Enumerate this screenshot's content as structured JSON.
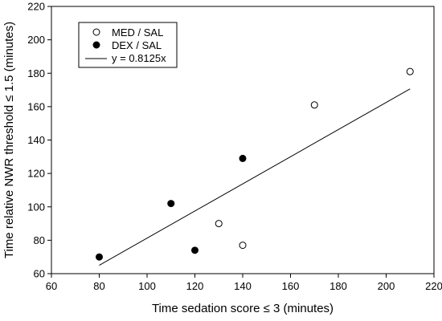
{
  "chart_data": {
    "type": "scatter",
    "xlabel": "Time sedation score ≤ 3 (minutes)",
    "ylabel": "Time relative NWR threshold ≤ 1.5 (minutes)",
    "xlim": [
      60,
      220
    ],
    "ylim": [
      60,
      220
    ],
    "xticks": [
      60,
      80,
      100,
      120,
      140,
      160,
      180,
      200,
      220
    ],
    "yticks": [
      60,
      80,
      100,
      120,
      140,
      160,
      180,
      200,
      220
    ],
    "grid": false,
    "legend_position": "top-left",
    "series": [
      {
        "name": "MED / SAL",
        "marker": "open-circle",
        "color": "#000000",
        "points": [
          [
            130,
            90
          ],
          [
            140,
            77
          ],
          [
            170,
            161
          ],
          [
            210,
            181
          ]
        ]
      },
      {
        "name": "DEX / SAL",
        "marker": "filled-circle",
        "color": "#000000",
        "points": [
          [
            80,
            70
          ],
          [
            110,
            102
          ],
          [
            120,
            74
          ],
          [
            140,
            129
          ]
        ]
      }
    ],
    "fit_line": {
      "name": "y = 0.8125x",
      "slope": 0.8125,
      "x_range": [
        80,
        210
      ]
    }
  }
}
